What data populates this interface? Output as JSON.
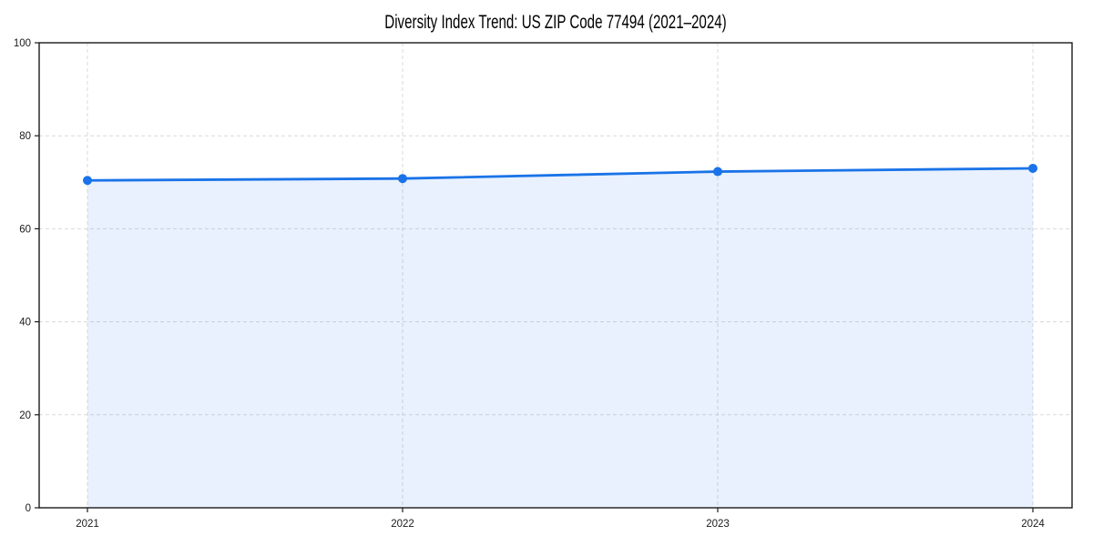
{
  "chart_data": {
    "type": "area",
    "title": "Diversity Index Trend: US ZIP Code 77494 (2021–2024)",
    "categories": [
      "2021",
      "2022",
      "2023",
      "2024"
    ],
    "series": [
      {
        "name": "Diversity Index",
        "values": [
          70.4,
          70.8,
          72.3,
          73.0
        ]
      }
    ],
    "xlabel": "",
    "ylabel": "",
    "ylim": [
      0,
      100
    ],
    "yticks": [
      0,
      20,
      40,
      60,
      80,
      100
    ],
    "grid": true,
    "legend": "none",
    "colors": {
      "line": "#1a73e8",
      "marker": "#1a73e8",
      "fill": "rgba(26,115,232,0.10)",
      "grid": "#d9d9d9",
      "spine": "#1a1a1a",
      "tick_label": "#1a1a1a",
      "background": "#ffffff"
    }
  }
}
